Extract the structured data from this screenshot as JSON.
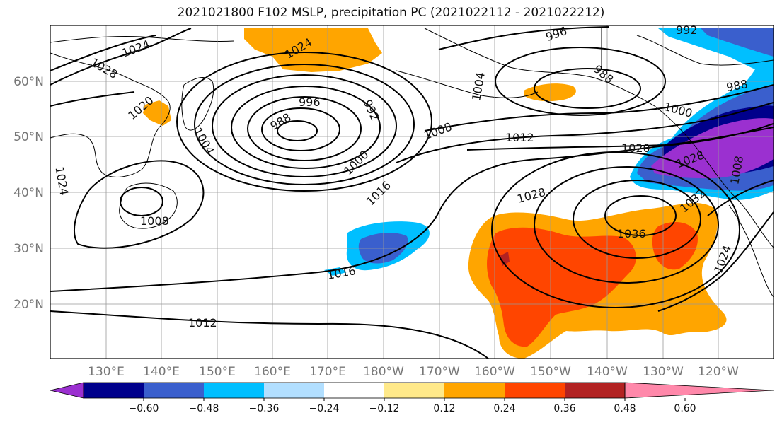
{
  "title": "2021021800 F102 MSLP, precipitation PC (2021022112 - 2021022212)",
  "map": {
    "lat_ticks": [
      "60°N",
      "50°N",
      "40°N",
      "30°N",
      "20°N"
    ],
    "lon_ticks": [
      "130°E",
      "140°E",
      "150°E",
      "160°E",
      "170°E",
      "180°W",
      "170°W",
      "160°W",
      "150°W",
      "140°W",
      "130°W",
      "120°W"
    ]
  },
  "colorbar": {
    "colors": [
      "#9b30d0",
      "#00008b",
      "#3a5fcd",
      "#00bfff",
      "#b2dfff",
      "#ffffff",
      "#ffe98a",
      "#ffa500",
      "#ff4500",
      "#b22222",
      "#ff88aa"
    ],
    "tick_labels": [
      "−0.60",
      "−0.48",
      "−0.36",
      "−0.24",
      "−0.12",
      "0.12",
      "0.24",
      "0.36",
      "0.48",
      "0.60"
    ]
  },
  "isobar_labels": [
    "1028",
    "1024",
    "1020",
    "1024",
    "1024",
    "1004",
    "1008",
    "988",
    "996",
    "992",
    "1000",
    "1016",
    "1008",
    "1016",
    "1012",
    "1012",
    "1028",
    "1036",
    "1024",
    "1032",
    "1020",
    "1028",
    "1000",
    "988",
    "988",
    "996",
    "992",
    "1004",
    "1008"
  ]
}
